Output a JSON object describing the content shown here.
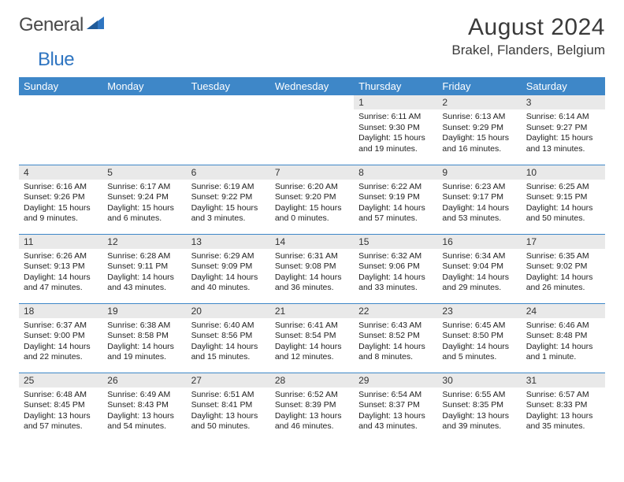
{
  "brand": {
    "general": "General",
    "blue": "Blue"
  },
  "title": {
    "month": "August 2024",
    "location": "Brakel, Flanders, Belgium"
  },
  "colors": {
    "header_bg": "#3e87c8",
    "header_fg": "#ffffff",
    "daynum_bg": "#e9e9e9",
    "rule": "#3e87c8"
  },
  "fonts": {
    "title_size": 30,
    "location_size": 17,
    "th_size": 13,
    "daynum_size": 12,
    "body_size": 10.5
  },
  "calendar": {
    "daynames": [
      "Sunday",
      "Monday",
      "Tuesday",
      "Wednesday",
      "Thursday",
      "Friday",
      "Saturday"
    ],
    "weeks": [
      [
        null,
        null,
        null,
        null,
        {
          "n": "1",
          "sr": "Sunrise: 6:11 AM",
          "ss": "Sunset: 9:30 PM",
          "d1": "Daylight: 15 hours",
          "d2": "and 19 minutes."
        },
        {
          "n": "2",
          "sr": "Sunrise: 6:13 AM",
          "ss": "Sunset: 9:29 PM",
          "d1": "Daylight: 15 hours",
          "d2": "and 16 minutes."
        },
        {
          "n": "3",
          "sr": "Sunrise: 6:14 AM",
          "ss": "Sunset: 9:27 PM",
          "d1": "Daylight: 15 hours",
          "d2": "and 13 minutes."
        }
      ],
      [
        {
          "n": "4",
          "sr": "Sunrise: 6:16 AM",
          "ss": "Sunset: 9:26 PM",
          "d1": "Daylight: 15 hours",
          "d2": "and 9 minutes."
        },
        {
          "n": "5",
          "sr": "Sunrise: 6:17 AM",
          "ss": "Sunset: 9:24 PM",
          "d1": "Daylight: 15 hours",
          "d2": "and 6 minutes."
        },
        {
          "n": "6",
          "sr": "Sunrise: 6:19 AM",
          "ss": "Sunset: 9:22 PM",
          "d1": "Daylight: 15 hours",
          "d2": "and 3 minutes."
        },
        {
          "n": "7",
          "sr": "Sunrise: 6:20 AM",
          "ss": "Sunset: 9:20 PM",
          "d1": "Daylight: 15 hours",
          "d2": "and 0 minutes."
        },
        {
          "n": "8",
          "sr": "Sunrise: 6:22 AM",
          "ss": "Sunset: 9:19 PM",
          "d1": "Daylight: 14 hours",
          "d2": "and 57 minutes."
        },
        {
          "n": "9",
          "sr": "Sunrise: 6:23 AM",
          "ss": "Sunset: 9:17 PM",
          "d1": "Daylight: 14 hours",
          "d2": "and 53 minutes."
        },
        {
          "n": "10",
          "sr": "Sunrise: 6:25 AM",
          "ss": "Sunset: 9:15 PM",
          "d1": "Daylight: 14 hours",
          "d2": "and 50 minutes."
        }
      ],
      [
        {
          "n": "11",
          "sr": "Sunrise: 6:26 AM",
          "ss": "Sunset: 9:13 PM",
          "d1": "Daylight: 14 hours",
          "d2": "and 47 minutes."
        },
        {
          "n": "12",
          "sr": "Sunrise: 6:28 AM",
          "ss": "Sunset: 9:11 PM",
          "d1": "Daylight: 14 hours",
          "d2": "and 43 minutes."
        },
        {
          "n": "13",
          "sr": "Sunrise: 6:29 AM",
          "ss": "Sunset: 9:09 PM",
          "d1": "Daylight: 14 hours",
          "d2": "and 40 minutes."
        },
        {
          "n": "14",
          "sr": "Sunrise: 6:31 AM",
          "ss": "Sunset: 9:08 PM",
          "d1": "Daylight: 14 hours",
          "d2": "and 36 minutes."
        },
        {
          "n": "15",
          "sr": "Sunrise: 6:32 AM",
          "ss": "Sunset: 9:06 PM",
          "d1": "Daylight: 14 hours",
          "d2": "and 33 minutes."
        },
        {
          "n": "16",
          "sr": "Sunrise: 6:34 AM",
          "ss": "Sunset: 9:04 PM",
          "d1": "Daylight: 14 hours",
          "d2": "and 29 minutes."
        },
        {
          "n": "17",
          "sr": "Sunrise: 6:35 AM",
          "ss": "Sunset: 9:02 PM",
          "d1": "Daylight: 14 hours",
          "d2": "and 26 minutes."
        }
      ],
      [
        {
          "n": "18",
          "sr": "Sunrise: 6:37 AM",
          "ss": "Sunset: 9:00 PM",
          "d1": "Daylight: 14 hours",
          "d2": "and 22 minutes."
        },
        {
          "n": "19",
          "sr": "Sunrise: 6:38 AM",
          "ss": "Sunset: 8:58 PM",
          "d1": "Daylight: 14 hours",
          "d2": "and 19 minutes."
        },
        {
          "n": "20",
          "sr": "Sunrise: 6:40 AM",
          "ss": "Sunset: 8:56 PM",
          "d1": "Daylight: 14 hours",
          "d2": "and 15 minutes."
        },
        {
          "n": "21",
          "sr": "Sunrise: 6:41 AM",
          "ss": "Sunset: 8:54 PM",
          "d1": "Daylight: 14 hours",
          "d2": "and 12 minutes."
        },
        {
          "n": "22",
          "sr": "Sunrise: 6:43 AM",
          "ss": "Sunset: 8:52 PM",
          "d1": "Daylight: 14 hours",
          "d2": "and 8 minutes."
        },
        {
          "n": "23",
          "sr": "Sunrise: 6:45 AM",
          "ss": "Sunset: 8:50 PM",
          "d1": "Daylight: 14 hours",
          "d2": "and 5 minutes."
        },
        {
          "n": "24",
          "sr": "Sunrise: 6:46 AM",
          "ss": "Sunset: 8:48 PM",
          "d1": "Daylight: 14 hours",
          "d2": "and 1 minute."
        }
      ],
      [
        {
          "n": "25",
          "sr": "Sunrise: 6:48 AM",
          "ss": "Sunset: 8:45 PM",
          "d1": "Daylight: 13 hours",
          "d2": "and 57 minutes."
        },
        {
          "n": "26",
          "sr": "Sunrise: 6:49 AM",
          "ss": "Sunset: 8:43 PM",
          "d1": "Daylight: 13 hours",
          "d2": "and 54 minutes."
        },
        {
          "n": "27",
          "sr": "Sunrise: 6:51 AM",
          "ss": "Sunset: 8:41 PM",
          "d1": "Daylight: 13 hours",
          "d2": "and 50 minutes."
        },
        {
          "n": "28",
          "sr": "Sunrise: 6:52 AM",
          "ss": "Sunset: 8:39 PM",
          "d1": "Daylight: 13 hours",
          "d2": "and 46 minutes."
        },
        {
          "n": "29",
          "sr": "Sunrise: 6:54 AM",
          "ss": "Sunset: 8:37 PM",
          "d1": "Daylight: 13 hours",
          "d2": "and 43 minutes."
        },
        {
          "n": "30",
          "sr": "Sunrise: 6:55 AM",
          "ss": "Sunset: 8:35 PM",
          "d1": "Daylight: 13 hours",
          "d2": "and 39 minutes."
        },
        {
          "n": "31",
          "sr": "Sunrise: 6:57 AM",
          "ss": "Sunset: 8:33 PM",
          "d1": "Daylight: 13 hours",
          "d2": "and 35 minutes."
        }
      ]
    ]
  }
}
